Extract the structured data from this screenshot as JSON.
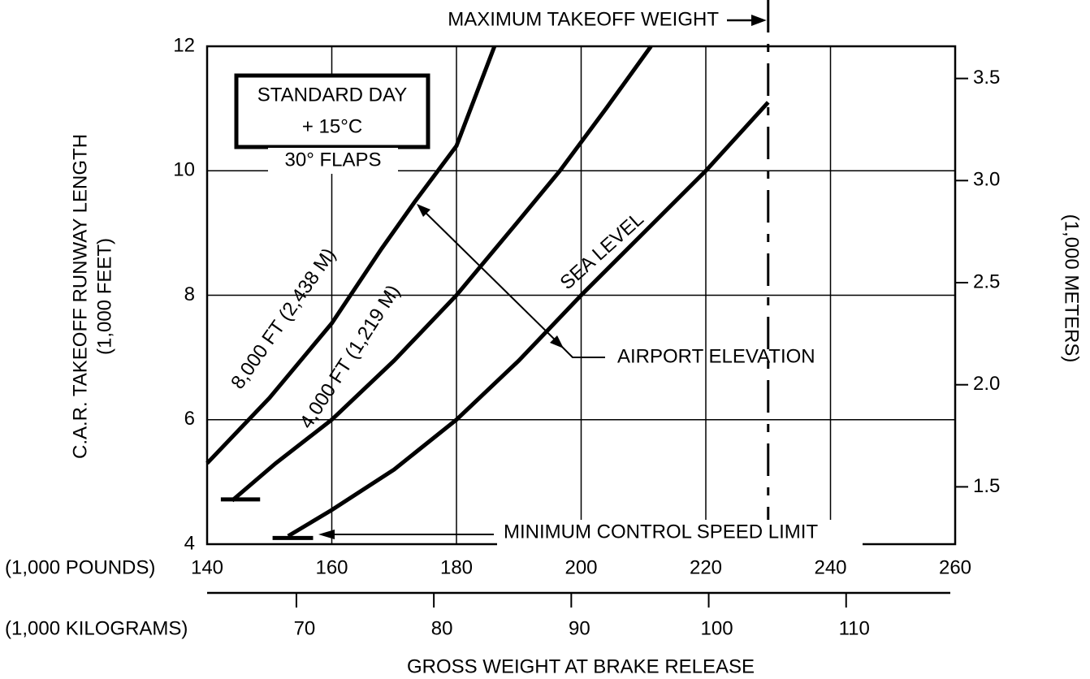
{
  "chart_data": {
    "type": "line",
    "title": "MAXIMUM TAKEOFF WEIGHT",
    "max_takeoff_weight": 230,
    "ylabel": "C.A.R. TAKEOFF RUNWAY LENGTH",
    "ylabel_units": "(1,000 FEET)",
    "y2label": "(1,000 METERS)",
    "xlabel_units": "(1,000 POUNDS)",
    "x2label_units": "(1,000 KILOGRAMS)",
    "xlabel": "GROSS WEIGHT AT BRAKE RELEASE",
    "box_lines": [
      "STANDARD DAY",
      "+ 15°C"
    ],
    "flaps": "30° FLAPS",
    "elevation_note": "AIRPORT ELEVATION",
    "limit_note": "MINIMUM CONTROL SPEED LIMIT",
    "xlim": [
      140,
      260
    ],
    "xticks": [
      140,
      160,
      180,
      200,
      220,
      240,
      260
    ],
    "x2lim": [
      63.503,
      117.934
    ],
    "x2ticks": [
      70,
      80,
      90,
      100,
      110
    ],
    "ylim": [
      4,
      12
    ],
    "yticks": [
      4,
      6,
      8,
      10,
      12
    ],
    "y2lim": [
      1.2192,
      3.6576
    ],
    "y2ticks": [
      1.5,
      {
        "value": 2.0,
        "label": "2.0"
      },
      2.5,
      {
        "value": 3.0,
        "label": "3.0"
      },
      3.5
    ],
    "grid": true,
    "series": [
      {
        "name": "SEA LEVEL",
        "color": "#000000",
        "x": [
          153,
          160,
          170,
          180,
          190,
          200,
          210,
          220,
          230
        ],
        "values": [
          4.13,
          4.55,
          5.2,
          6.0,
          6.95,
          8.0,
          9.0,
          10.0,
          11.1
        ],
        "limit": {
          "x": [
            150.5,
            157
          ],
          "y": 4.1
        }
      },
      {
        "name": "4,000 FT (1,219 M)",
        "color": "#000000",
        "x": [
          144,
          151,
          160,
          170,
          180,
          190,
          196.6,
          204,
          211.2
        ],
        "values": [
          4.7,
          5.3,
          6.0,
          6.95,
          8.0,
          9.2,
          10.0,
          11.0,
          12.0
        ],
        "limit": {
          "x": [
            142.2,
            148.5
          ],
          "y": 4.72
        }
      },
      {
        "name": "8,000 FT (2,438 M)",
        "color": "#000000",
        "x": [
          140,
          150,
          160,
          168,
          173.3,
          180,
          186.1
        ],
        "values": [
          5.3,
          6.35,
          7.55,
          8.75,
          9.5,
          10.4,
          12.0
        ]
      }
    ]
  }
}
